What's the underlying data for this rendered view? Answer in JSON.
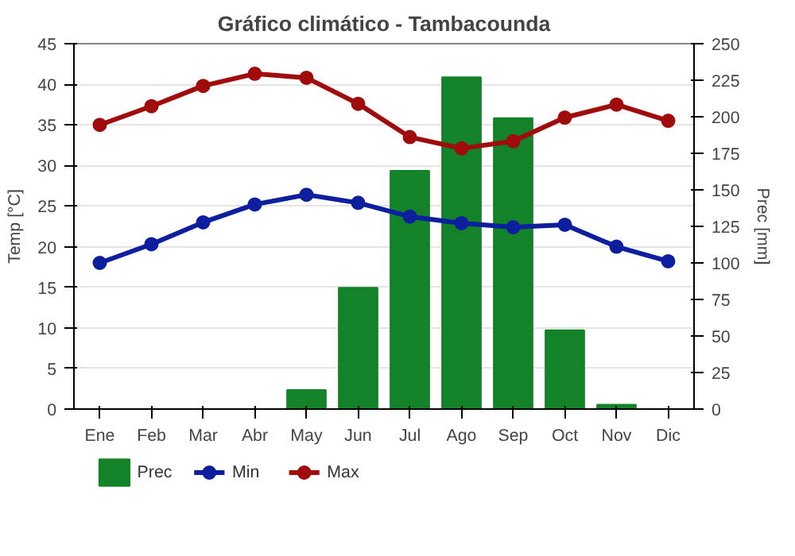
{
  "chart_data": {
    "type": "bar",
    "title": "Gráfico climático - Tambacounda",
    "categories": [
      "Ene",
      "Feb",
      "Mar",
      "Abr",
      "May",
      "Jun",
      "Jul",
      "Ago",
      "Sep",
      "Oct",
      "Nov",
      "Dic"
    ],
    "ylabel": "Temp [°C]",
    "y2label": "Prec [mm]",
    "ylim": [
      0,
      45
    ],
    "yticks": [
      0,
      5,
      10,
      15,
      20,
      25,
      30,
      35,
      40,
      45
    ],
    "y2lim": [
      0,
      250
    ],
    "y2ticks": [
      0,
      25,
      50,
      75,
      100,
      125,
      150,
      175,
      200,
      225,
      250
    ],
    "grid": "y",
    "legend": "bottom",
    "marker": "circle",
    "series": [
      {
        "name": "Prec",
        "axis": "y2",
        "color": "#138228",
        "values": [
          0,
          0,
          0,
          0,
          13,
          83,
          163,
          227,
          199,
          54,
          3,
          0
        ]
      },
      {
        "name": "Min",
        "type": "line",
        "color": "#0d1e9e",
        "values": [
          18,
          20.3,
          23,
          25.2,
          26.4,
          25.4,
          23.7,
          22.9,
          22.4,
          22.7,
          20,
          18.2
        ]
      },
      {
        "name": "Max",
        "type": "line",
        "color": "#a00b0b",
        "values": [
          35,
          37.3,
          39.8,
          41.3,
          40.8,
          37.6,
          33.5,
          32.1,
          33,
          35.9,
          37.5,
          35.5
        ]
      }
    ]
  }
}
